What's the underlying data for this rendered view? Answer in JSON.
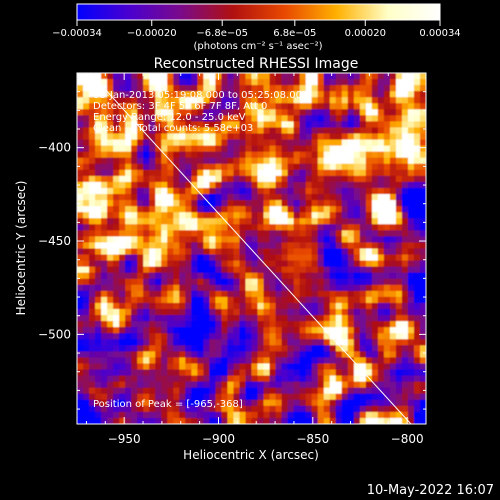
{
  "chart_data": {
    "type": "heatmap",
    "title": "Reconstructed RHESSI Image",
    "xlabel": "Heliocentric X (arcsec)",
    "ylabel": "Heliocentric Y (arcsec)",
    "xlim": [
      -975,
      -790
    ],
    "ylim": [
      -548,
      -360
    ],
    "xticks": [
      -950,
      -900,
      -850,
      -800
    ],
    "xtick_labels": [
      "−950",
      "−900",
      "−850",
      "−800"
    ],
    "yticks": [
      -400,
      -450,
      -500
    ],
    "ytick_labels": [
      "−400",
      "−450",
      "−500"
    ],
    "colorbar": {
      "range": [
        -0.00034,
        0.00034
      ],
      "tick_values": [
        -0.00034,
        -0.0002,
        -6.8e-05,
        6.8e-05,
        0.0002,
        0.00034
      ],
      "tick_labels": [
        "−0.00034",
        "−0.00020",
        "−6.8e−05",
        "6.8e−05",
        "0.00020",
        "0.00034"
      ],
      "unit": "(photons cm⁻² s⁻¹ asec⁻²)",
      "colors": [
        "#0000ff",
        "#4a00d0",
        "#7a0a8a",
        "#b01010",
        "#e84800",
        "#ffb000",
        "#ffffc8",
        "#ffffff"
      ]
    },
    "annotations": {
      "time_range": "08-Jan-2013 05:19:08.000 to 05:25:08.000",
      "detectors": "Detectors: 3F 4F 5F 6F 7F 8F, Att 0",
      "energy_range": "Energy Range: 12.0 - 25.0 keV",
      "clean": "Clean     Total counts: 5.58e+03",
      "peak": "Position of Peak = [-965,-368]"
    },
    "limb_line": {
      "x": [
        -968,
        -798
      ],
      "y": [
        -360,
        -548
      ]
    },
    "peak_position": [
      -965,
      -368
    ]
  },
  "footer": {
    "timestamp": "10-May-2022 16:07"
  }
}
